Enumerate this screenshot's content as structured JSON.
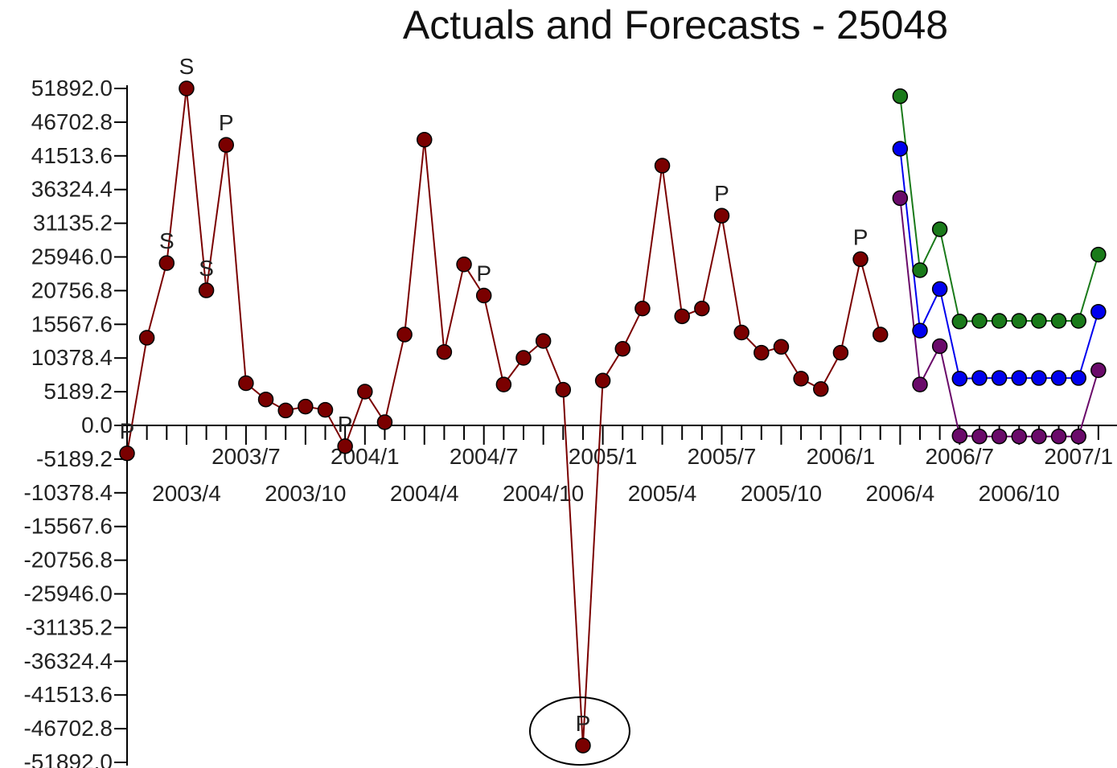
{
  "chart_data": {
    "type": "line",
    "title": "Actuals and Forecasts - 25048",
    "xlabel": "",
    "ylabel": "",
    "ylim": [
      -51892.0,
      51892.0
    ],
    "y_ticks": [
      "51892.0",
      "46702.8",
      "41513.6",
      "36324.4",
      "31135.2",
      "25946.0",
      "20756.8",
      "15567.6",
      "10378.4",
      "5189.2",
      "0.0",
      "-5189.2",
      "-10378.4",
      "-15567.6",
      "-20756.8",
      "-25946.0",
      "-31135.2",
      "-36324.4",
      "-41513.6",
      "-46702.8",
      "-51892.0"
    ],
    "x_labels_upper": [
      "2003/7",
      "2004/1",
      "2004/7",
      "2005/1",
      "2005/7",
      "2006/1",
      "2006/7",
      "2007/1"
    ],
    "x_labels_lower": [
      "2003/4",
      "2003/10",
      "2004/4",
      "2004/10",
      "2005/4",
      "2005/10",
      "2006/4",
      "2006/10"
    ],
    "x_start": "2003/1",
    "grid": false,
    "series": [
      {
        "color": "#7a0000",
        "start_index": 0,
        "values": [
          -4300,
          13500,
          25000,
          51892,
          20800,
          43200,
          6500,
          4000,
          2300,
          2900,
          2400,
          -3200,
          5200,
          500,
          14000,
          44000,
          11300,
          24800,
          20000,
          6300,
          10400,
          13000,
          5500,
          -49300,
          6900,
          11800,
          18000,
          40000,
          16800,
          18000,
          32300,
          14300,
          11200,
          12100,
          7200,
          5600,
          11200,
          25600,
          14000
        ],
        "markers": {
          "0": "P",
          "2": "S",
          "3": "S",
          "4": "S",
          "5": "P",
          "11": "P",
          "18": "P",
          "23": "P",
          "30": "P",
          "37": "P"
        },
        "circled_index": 23
      },
      {
        "color": "#1a7a1a",
        "start_index": 39,
        "values": [
          50700,
          23900,
          30200,
          16000,
          16100,
          16100,
          16100,
          16100,
          16100,
          16100,
          26300
        ]
      },
      {
        "color": "#0000ee",
        "start_index": 39,
        "values": [
          42600,
          14600,
          21000,
          7200,
          7300,
          7300,
          7300,
          7300,
          7300,
          7300,
          17500
        ]
      },
      {
        "color": "#6a0a6a",
        "start_index": 39,
        "values": [
          35000,
          6300,
          12200,
          -1600,
          -1700,
          -1700,
          -1700,
          -1700,
          -1700,
          -1700,
          8500
        ]
      }
    ]
  }
}
